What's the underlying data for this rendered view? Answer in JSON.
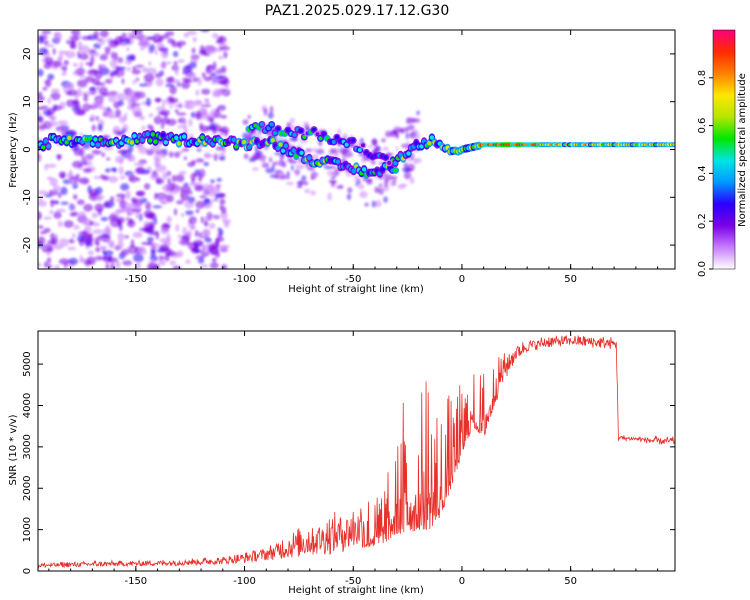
{
  "figure": {
    "title": "PAZ1.2025.029.17.12.G30"
  },
  "chart_data": [
    {
      "type": "heatmap",
      "xlabel": "Height of straight line (km)",
      "ylabel": "Frequency (Hz)",
      "xlim": [
        -195,
        98
      ],
      "ylim": [
        -25,
        25
      ],
      "xticks": [
        "-150",
        "-100",
        "-50",
        "0",
        "50"
      ],
      "yticks": [
        "-20",
        "-10",
        "0",
        "10",
        "20"
      ],
      "colorbar": {
        "label": "Normalized spectral amplitude",
        "range": [
          0,
          1
        ],
        "ticks": [
          "0.0",
          "0.2",
          "0.4",
          "0.6",
          "0.8"
        ],
        "colors": [
          "#ffffff",
          "#c77dff",
          "#7a00e6",
          "#2a00ff",
          "#0099ff",
          "#00e5e5",
          "#00e600",
          "#b5e600",
          "#ffe600",
          "#ff8000",
          "#ff2a00",
          "#ff0080"
        ]
      },
      "ridge": [
        {
          "x": -190,
          "f": 2
        },
        {
          "x": -175,
          "f": 1.5
        },
        {
          "x": -160,
          "f": 1.5
        },
        {
          "x": -145,
          "f": 2.5
        },
        {
          "x": -130,
          "f": 2
        },
        {
          "x": -115,
          "f": 2
        },
        {
          "x": -100,
          "f": 1
        },
        {
          "x": -90,
          "f": 2
        },
        {
          "x": -80,
          "f": 0
        },
        {
          "x": -70,
          "f": -2
        },
        {
          "x": -60,
          "f": -3
        },
        {
          "x": -50,
          "f": -4
        },
        {
          "x": -40,
          "f": -5
        },
        {
          "x": -35,
          "f": -4
        },
        {
          "x": -30,
          "f": -2
        },
        {
          "x": -20,
          "f": 1
        },
        {
          "x": -12,
          "f": 2
        },
        {
          "x": -5,
          "f": 0
        },
        {
          "x": 0,
          "f": 0
        },
        {
          "x": 10,
          "f": 1
        },
        {
          "x": 30,
          "f": 1
        },
        {
          "x": 60,
          "f": 1
        },
        {
          "x": 98,
          "f": 1
        }
      ],
      "branch": [
        {
          "x": -98,
          "f": 5
        },
        {
          "x": -80,
          "f": 4
        },
        {
          "x": -65,
          "f": 3
        },
        {
          "x": -50,
          "f": 1
        },
        {
          "x": -40,
          "f": -1
        },
        {
          "x": -30,
          "f": -4
        }
      ]
    },
    {
      "type": "line",
      "xlabel": "Height of straight line (km)",
      "ylabel": "SNR (10 * v/v)",
      "xlim": [
        -195,
        98
      ],
      "ylim": [
        0,
        5800
      ],
      "xticks": [
        "-150",
        "-100",
        "-50",
        "0",
        "50"
      ],
      "yticks": [
        "0",
        "1000",
        "2000",
        "3000",
        "4000",
        "5000"
      ],
      "color": "#e8302a",
      "envelope": [
        {
          "x": -195,
          "lo": 80,
          "hi": 200
        },
        {
          "x": -170,
          "lo": 100,
          "hi": 250
        },
        {
          "x": -150,
          "lo": 120,
          "hi": 250
        },
        {
          "x": -130,
          "lo": 130,
          "hi": 300
        },
        {
          "x": -110,
          "lo": 160,
          "hi": 350
        },
        {
          "x": -100,
          "lo": 200,
          "hi": 450
        },
        {
          "x": -90,
          "lo": 250,
          "hi": 600
        },
        {
          "x": -80,
          "lo": 300,
          "hi": 900
        },
        {
          "x": -70,
          "lo": 350,
          "hi": 1200
        },
        {
          "x": -60,
          "lo": 400,
          "hi": 1400
        },
        {
          "x": -50,
          "lo": 500,
          "hi": 1600
        },
        {
          "x": -40,
          "lo": 600,
          "hi": 2100
        },
        {
          "x": -35,
          "lo": 700,
          "hi": 2300
        },
        {
          "x": -30,
          "lo": 900,
          "hi": 3000
        },
        {
          "x": -25,
          "lo": 900,
          "hi": 5300
        },
        {
          "x": -20,
          "lo": 1000,
          "hi": 5000
        },
        {
          "x": -15,
          "lo": 1000,
          "hi": 5200
        },
        {
          "x": -10,
          "lo": 1300,
          "hi": 4000
        },
        {
          "x": -5,
          "lo": 2000,
          "hi": 4500
        },
        {
          "x": 0,
          "lo": 2800,
          "hi": 4600
        },
        {
          "x": 5,
          "lo": 3500,
          "hi": 4800
        },
        {
          "x": 10,
          "lo": 3200,
          "hi": 5000
        },
        {
          "x": 15,
          "lo": 4000,
          "hi": 5100
        },
        {
          "x": 20,
          "lo": 4600,
          "hi": 5300
        },
        {
          "x": 25,
          "lo": 5100,
          "hi": 5500
        },
        {
          "x": 30,
          "lo": 5300,
          "hi": 5600
        },
        {
          "x": 40,
          "lo": 5400,
          "hi": 5700
        },
        {
          "x": 50,
          "lo": 5450,
          "hi": 5700
        },
        {
          "x": 60,
          "lo": 5400,
          "hi": 5700
        },
        {
          "x": 71,
          "lo": 5350,
          "hi": 5650
        },
        {
          "x": 72,
          "lo": 3150,
          "hi": 3300
        },
        {
          "x": 80,
          "lo": 3150,
          "hi": 3250
        },
        {
          "x": 90,
          "lo": 3050,
          "hi": 3250
        },
        {
          "x": 98,
          "lo": 3050,
          "hi": 3250
        }
      ]
    }
  ]
}
